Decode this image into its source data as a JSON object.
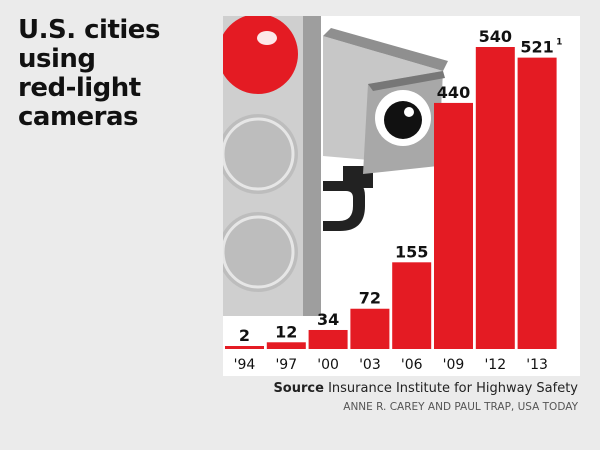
{
  "title_lines": [
    "U.S. cities",
    "using",
    "red-light",
    "cameras"
  ],
  "source": {
    "label": "Source",
    "text": "Insurance Institute for Highway Safety"
  },
  "credit": "ANNE R. CAREY AND PAUL TRAP, USA TODAY",
  "footnote_mark": "1",
  "colors": {
    "bar": "#e41b23",
    "panel": "#ffffff",
    "background": "#ebebeb"
  },
  "chart_data": {
    "type": "bar",
    "title": "U.S. cities using red-light cameras",
    "categories": [
      "'94",
      "'97",
      "'00",
      "'03",
      "'06",
      "'09",
      "'12",
      "'13"
    ],
    "values": [
      2,
      12,
      34,
      72,
      155,
      440,
      540,
      521
    ],
    "data_labels": [
      "2",
      "12",
      "34",
      "72",
      "155",
      "440",
      "540",
      "521"
    ],
    "ylim": [
      0,
      600
    ],
    "grid": false,
    "legend": "none"
  }
}
